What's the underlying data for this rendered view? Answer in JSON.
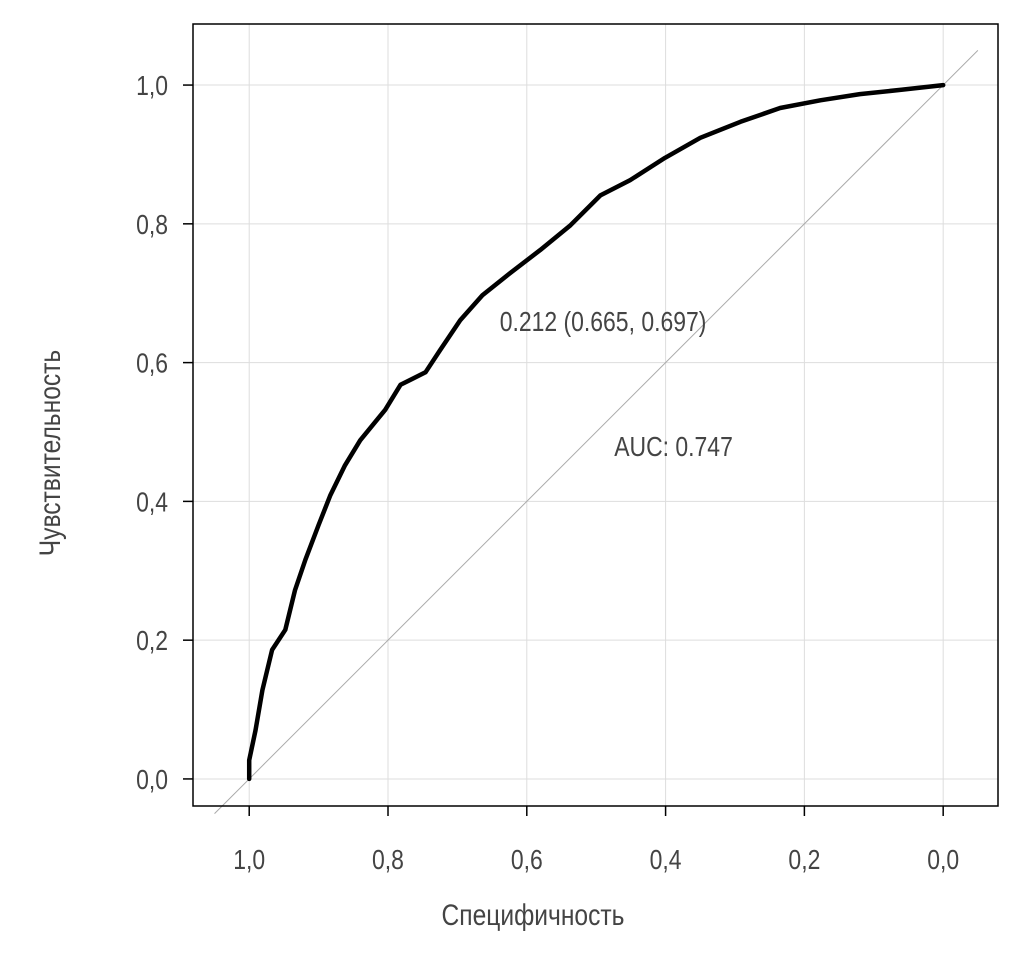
{
  "chart_data": {
    "type": "line",
    "title": "",
    "xlabel": "Специфичность",
    "ylabel": "Чувствительность",
    "xlim": [
      1.081,
      -0.079
    ],
    "ylim": [
      -0.039,
      1.088
    ],
    "x_reversed": true,
    "grid": true,
    "xticks": [
      1.0,
      0.8,
      0.6,
      0.4,
      0.2,
      0.0
    ],
    "xtick_labels": [
      "1,0",
      "0,8",
      "0,6",
      "0,4",
      "0,2",
      "0,0"
    ],
    "yticks": [
      0.0,
      0.2,
      0.4,
      0.6,
      0.8,
      1.0
    ],
    "ytick_labels": [
      "0,0",
      "0,2",
      "0,4",
      "0,6",
      "0,8",
      "1,0"
    ],
    "series": [
      {
        "name": "ROC",
        "color": "#000000",
        "x": [
          1.0,
          1.0,
          0.991,
          0.981,
          0.967,
          0.948,
          0.934,
          0.919,
          0.9,
          0.883,
          0.862,
          0.84,
          0.804,
          0.782,
          0.746,
          0.725,
          0.696,
          0.664,
          0.624,
          0.581,
          0.537,
          0.494,
          0.451,
          0.401,
          0.35,
          0.292,
          0.235,
          0.177,
          0.12,
          0.062,
          0.0
        ],
        "y": [
          0.0,
          0.027,
          0.07,
          0.128,
          0.186,
          0.215,
          0.272,
          0.316,
          0.366,
          0.409,
          0.452,
          0.488,
          0.532,
          0.568,
          0.586,
          0.618,
          0.661,
          0.697,
          0.729,
          0.762,
          0.798,
          0.841,
          0.863,
          0.895,
          0.924,
          0.947,
          0.967,
          0.978,
          0.987,
          0.993,
          1.0
        ]
      }
    ],
    "reference_line": {
      "name": "chance diagonal",
      "color": "#aaaaaa",
      "x": [
        1.05,
        -0.05
      ],
      "y": [
        -0.05,
        1.05
      ]
    },
    "annotations": [
      {
        "text": "0.212 (0.665, 0.697)",
        "x": 0.665,
        "y": 0.66
      },
      {
        "text": "AUC: 0.747",
        "x": 0.5,
        "y": 0.48
      }
    ]
  }
}
